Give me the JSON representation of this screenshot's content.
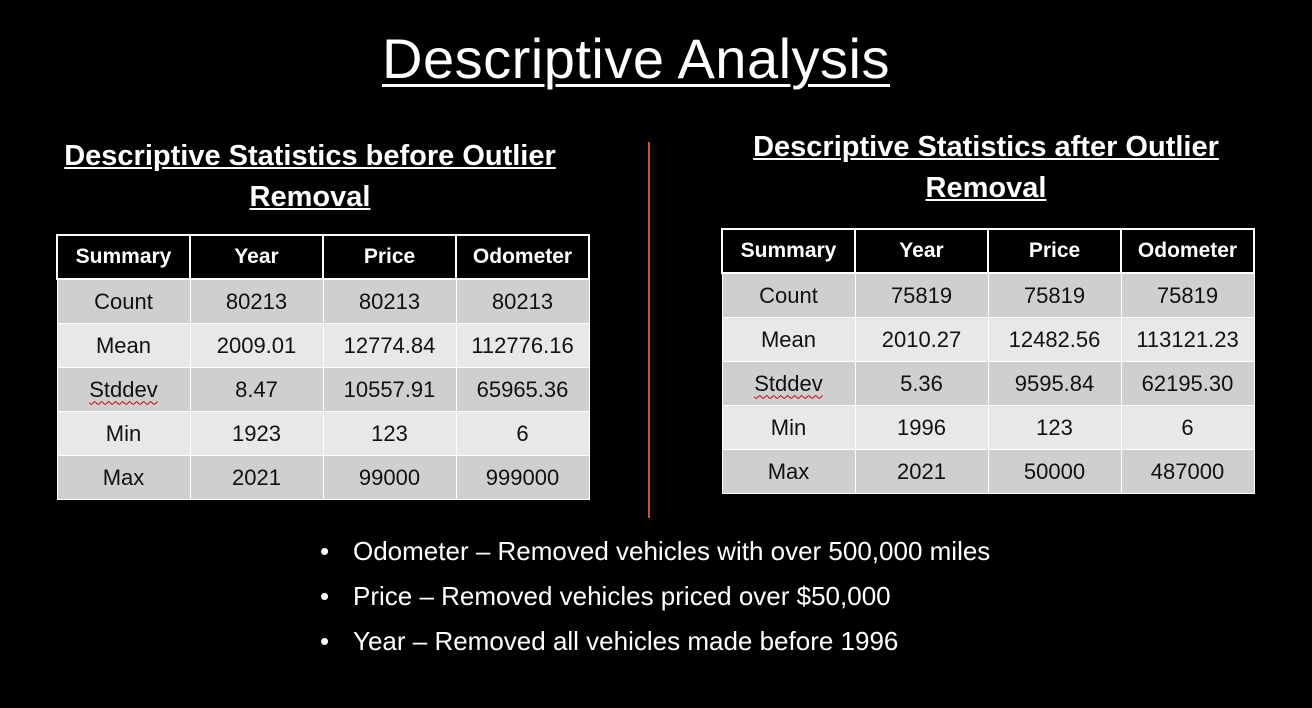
{
  "slide": {
    "title": "Descriptive Analysis"
  },
  "before": {
    "heading_line1": "Descriptive Statistics before Outlier",
    "heading_line2": "Removal",
    "columns": [
      "Summary",
      "Year",
      "Price",
      "Odometer"
    ],
    "rows": [
      {
        "label": "Count",
        "values": [
          "80213",
          "80213",
          "80213"
        ]
      },
      {
        "label": "Mean",
        "values": [
          "2009.01",
          "12774.84",
          "112776.16"
        ]
      },
      {
        "label": "Stddev",
        "values": [
          "8.47",
          "10557.91",
          "65965.36"
        ]
      },
      {
        "label": "Min",
        "values": [
          "1923",
          "123",
          "6"
        ]
      },
      {
        "label": "Max",
        "values": [
          "2021",
          "99000",
          "999000"
        ]
      }
    ]
  },
  "after": {
    "heading_line1": "Descriptive Statistics after Outlier",
    "heading_line2": "Removal",
    "columns": [
      "Summary",
      "Year",
      "Price",
      "Odometer"
    ],
    "rows": [
      {
        "label": "Count",
        "values": [
          "75819",
          "75819",
          "75819"
        ]
      },
      {
        "label": "Mean",
        "values": [
          "2010.27",
          "12482.56",
          "113121.23"
        ]
      },
      {
        "label": "Stddev",
        "values": [
          "5.36",
          "9595.84",
          "62195.30"
        ]
      },
      {
        "label": "Min",
        "values": [
          "1996",
          "123",
          "6"
        ]
      },
      {
        "label": "Max",
        "values": [
          "2021",
          "50000",
          "487000"
        ]
      }
    ]
  },
  "notes": [
    "Odometer – Removed vehicles with over 500,000 miles",
    "Price – Removed vehicles priced over $50,000",
    "Year – Removed all vehicles made before 1996"
  ],
  "colors": {
    "background": "#000000",
    "divider": "#c55a28",
    "row_dark": "#cfcfcf",
    "row_light": "#e8e8e8"
  }
}
